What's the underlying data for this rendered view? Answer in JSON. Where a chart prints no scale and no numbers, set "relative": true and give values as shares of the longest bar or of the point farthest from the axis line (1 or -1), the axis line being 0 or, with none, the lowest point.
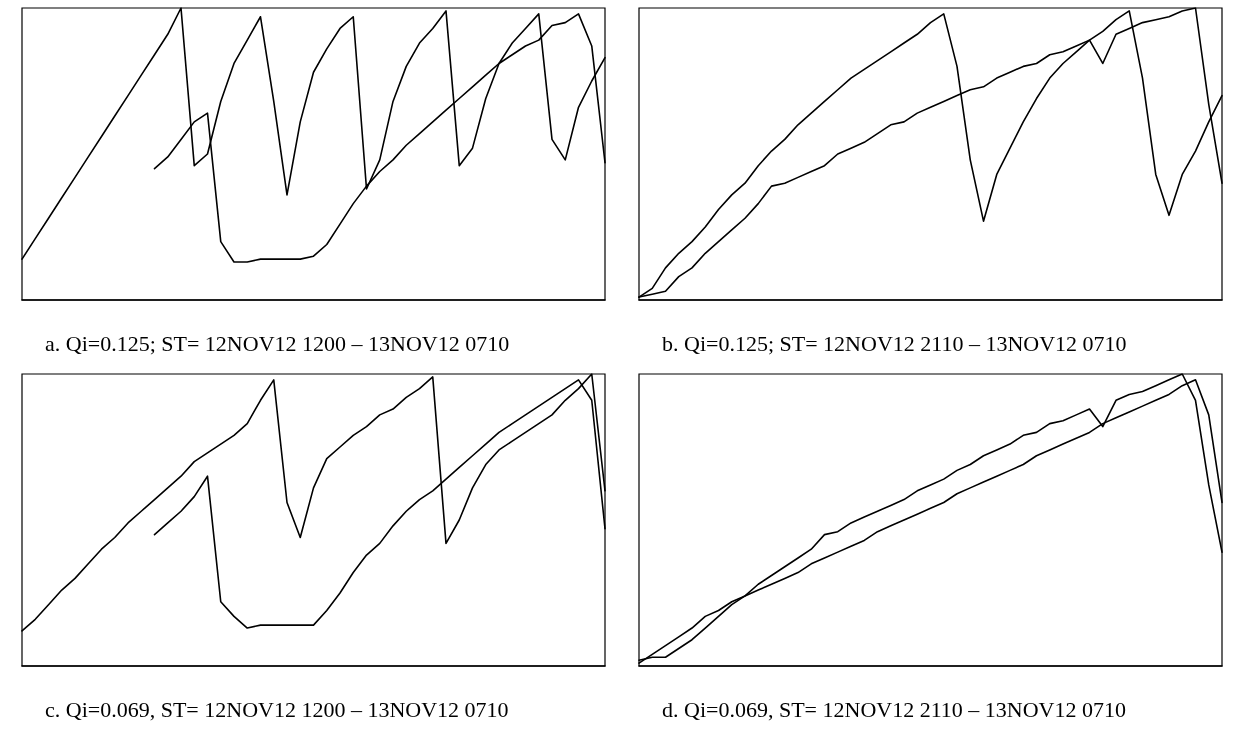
{
  "chart_data": [
    {
      "type": "line",
      "title": "a. Qi=0.125; ST= 12NOV12 1200 – 13NOV12 0710",
      "relative": true,
      "marker": "none",
      "categories": [
        null,
        null,
        null,
        null,
        null,
        null,
        null,
        null,
        null,
        null,
        null,
        null,
        null,
        null,
        null,
        null,
        null,
        null,
        null,
        null,
        null,
        null,
        null,
        null,
        null,
        null,
        null,
        null,
        null,
        null,
        null,
        null,
        null,
        null,
        null,
        null,
        null,
        null,
        null,
        null,
        null,
        null,
        null,
        null,
        null
      ],
      "series": [
        {
          "color": "#000000",
          "values": [
            0.14,
            0.21,
            0.28,
            0.35,
            0.42,
            0.49,
            0.56,
            0.63,
            0.7,
            0.77,
            0.84,
            0.91,
            1.0,
            0.46,
            0.5,
            0.68,
            0.81,
            0.89,
            0.97,
            0.68,
            0.36,
            0.61,
            0.78,
            0.86,
            0.93,
            0.97,
            0.38,
            0.48,
            0.68,
            0.8,
            0.88,
            0.93,
            0.99,
            0.46,
            0.52,
            0.69,
            0.81,
            0.88,
            0.93,
            0.98,
            0.55,
            0.48,
            0.66,
            0.75,
            0.83
          ]
        },
        {
          "color": "#000000",
          "values": [
            null,
            null,
            null,
            null,
            null,
            null,
            null,
            null,
            null,
            null,
            0.45,
            0.49,
            0.55,
            0.61,
            0.64,
            0.2,
            0.13,
            0.13,
            0.14,
            0.14,
            0.14,
            0.14,
            0.15,
            0.19,
            0.26,
            0.33,
            0.39,
            0.44,
            0.48,
            0.53,
            0.57,
            0.61,
            0.65,
            0.69,
            0.73,
            0.77,
            0.81,
            0.84,
            0.87,
            0.89,
            0.94,
            0.95,
            0.98,
            0.87,
            0.47
          ]
        }
      ]
    },
    {
      "type": "line",
      "title": "b. Qi=0.125; ST= 12NOV12 2110 – 13NOV12 0710",
      "relative": true,
      "marker": "none",
      "categories": [
        null,
        null,
        null,
        null,
        null,
        null,
        null,
        null,
        null,
        null,
        null,
        null,
        null,
        null,
        null,
        null,
        null,
        null,
        null,
        null,
        null,
        null,
        null,
        null,
        null,
        null,
        null,
        null,
        null,
        null,
        null,
        null,
        null,
        null,
        null,
        null,
        null,
        null,
        null,
        null,
        null,
        null,
        null,
        null,
        null
      ],
      "series": [
        {
          "color": "#000000",
          "values": [
            0.01,
            0.04,
            0.11,
            0.16,
            0.2,
            0.25,
            0.31,
            0.36,
            0.4,
            0.46,
            0.51,
            0.55,
            0.6,
            0.64,
            0.68,
            0.72,
            0.76,
            0.79,
            0.82,
            0.85,
            0.88,
            0.91,
            0.95,
            0.98,
            0.8,
            0.48,
            0.27,
            0.43,
            0.52,
            0.61,
            0.69,
            0.76,
            0.81,
            0.85,
            0.89,
            0.92,
            0.96,
            0.99,
            0.76,
            0.43,
            0.29,
            0.43,
            0.51,
            0.61,
            0.7
          ]
        },
        {
          "color": "#000000",
          "values": [
            0.01,
            0.02,
            0.03,
            0.08,
            0.11,
            0.16,
            0.2,
            0.24,
            0.28,
            0.33,
            0.39,
            0.4,
            0.42,
            0.44,
            0.46,
            0.5,
            0.52,
            0.54,
            0.57,
            0.6,
            0.61,
            0.64,
            0.66,
            0.68,
            0.7,
            0.72,
            0.73,
            0.76,
            0.78,
            0.8,
            0.81,
            0.84,
            0.85,
            0.87,
            0.89,
            0.81,
            0.91,
            0.93,
            0.95,
            0.96,
            0.97,
            0.99,
            1.0,
            0.67,
            0.4
          ]
        }
      ]
    },
    {
      "type": "line",
      "title": "c. Qi=0.069, ST= 12NOV12 1200 – 13NOV12 0710",
      "relative": true,
      "marker": "none",
      "categories": [
        null,
        null,
        null,
        null,
        null,
        null,
        null,
        null,
        null,
        null,
        null,
        null,
        null,
        null,
        null,
        null,
        null,
        null,
        null,
        null,
        null,
        null,
        null,
        null,
        null,
        null,
        null,
        null,
        null,
        null,
        null,
        null,
        null,
        null,
        null,
        null,
        null,
        null,
        null,
        null,
        null,
        null,
        null,
        null,
        null
      ],
      "series": [
        {
          "color": "#000000",
          "values": [
            0.12,
            0.16,
            0.21,
            0.26,
            0.3,
            0.35,
            0.4,
            0.44,
            0.49,
            0.53,
            0.57,
            0.61,
            0.65,
            0.7,
            0.73,
            0.76,
            0.79,
            0.83,
            0.91,
            0.98,
            0.56,
            0.44,
            0.61,
            0.71,
            0.75,
            0.79,
            0.82,
            0.86,
            0.88,
            0.92,
            0.95,
            0.99,
            0.42,
            0.5,
            0.61,
            0.69,
            0.74,
            0.77,
            0.8,
            0.83,
            0.86,
            0.91,
            0.95,
            1.0,
            0.6
          ]
        },
        {
          "color": "#000000",
          "values": [
            null,
            null,
            null,
            null,
            null,
            null,
            null,
            null,
            null,
            null,
            0.45,
            0.49,
            0.53,
            0.58,
            0.65,
            0.22,
            0.17,
            0.13,
            0.14,
            0.14,
            0.14,
            0.14,
            0.14,
            0.19,
            0.25,
            0.32,
            0.38,
            0.42,
            0.48,
            0.53,
            0.57,
            0.6,
            0.64,
            0.68,
            0.72,
            0.76,
            0.8,
            0.83,
            0.86,
            0.89,
            0.92,
            0.95,
            0.98,
            0.91,
            0.47
          ]
        }
      ]
    },
    {
      "type": "line",
      "title": "d. Qi=0.069, ST= 12NOV12 2110 – 13NOV12 0710",
      "relative": true,
      "marker": "none",
      "categories": [
        null,
        null,
        null,
        null,
        null,
        null,
        null,
        null,
        null,
        null,
        null,
        null,
        null,
        null,
        null,
        null,
        null,
        null,
        null,
        null,
        null,
        null,
        null,
        null,
        null,
        null,
        null,
        null,
        null,
        null,
        null,
        null,
        null,
        null,
        null,
        null,
        null,
        null,
        null,
        null,
        null,
        null,
        null,
        null,
        null
      ],
      "series": [
        {
          "color": "#000000",
          "values": [
            0.01,
            0.04,
            0.07,
            0.1,
            0.13,
            0.17,
            0.19,
            0.22,
            0.24,
            0.26,
            0.28,
            0.3,
            0.32,
            0.35,
            0.37,
            0.39,
            0.41,
            0.43,
            0.46,
            0.48,
            0.5,
            0.52,
            0.54,
            0.56,
            0.59,
            0.61,
            0.63,
            0.65,
            0.67,
            0.69,
            0.72,
            0.74,
            0.76,
            0.78,
            0.8,
            0.83,
            0.85,
            0.87,
            0.89,
            0.91,
            0.93,
            0.96,
            0.98,
            0.86,
            0.56
          ]
        },
        {
          "color": "#000000",
          "values": [
            0.02,
            0.03,
            0.03,
            0.06,
            0.09,
            0.13,
            0.17,
            0.21,
            0.24,
            0.28,
            0.31,
            0.34,
            0.37,
            0.4,
            0.45,
            0.46,
            0.49,
            0.51,
            0.53,
            0.55,
            0.57,
            0.6,
            0.62,
            0.64,
            0.67,
            0.69,
            0.72,
            0.74,
            0.76,
            0.79,
            0.8,
            0.83,
            0.84,
            0.86,
            0.88,
            0.82,
            0.91,
            0.93,
            0.94,
            0.96,
            0.98,
            1.0,
            0.91,
            0.62,
            0.39
          ]
        }
      ]
    }
  ]
}
